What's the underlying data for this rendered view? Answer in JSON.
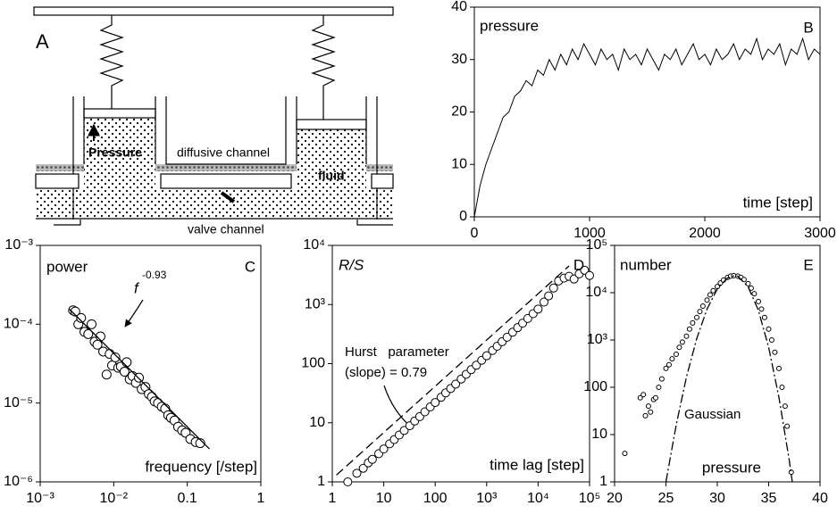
{
  "diagram": {
    "panel_label": "A",
    "labels": [
      "Pressure",
      "diffusive channel",
      "fluid",
      "valve channel"
    ]
  },
  "chart_data": [
    {
      "type": "line",
      "panel_label": "B",
      "ylabel": "pressure",
      "xlabel": "time [step]",
      "xlim": [
        0,
        3000
      ],
      "ylim": [
        0,
        40
      ],
      "xticks": [
        0,
        1000,
        2000,
        3000
      ],
      "yticks": [
        0,
        10,
        20,
        30,
        40
      ],
      "series": [
        {
          "kind": "line",
          "color": "#000000",
          "dash": "solid",
          "x": [
            0,
            50,
            100,
            150,
            200,
            250,
            300,
            350,
            400,
            450,
            500,
            550,
            600,
            650,
            700,
            750,
            800,
            850,
            900,
            950,
            1000,
            1050,
            1100,
            1150,
            1200,
            1250,
            1300,
            1350,
            1400,
            1450,
            1500,
            1550,
            1600,
            1650,
            1700,
            1750,
            1800,
            1850,
            1900,
            1950,
            2000,
            2050,
            2100,
            2150,
            2200,
            2250,
            2300,
            2350,
            2400,
            2450,
            2500,
            2550,
            2600,
            2650,
            2700,
            2750,
            2800,
            2850,
            2900,
            2950,
            3000
          ],
          "values": [
            0,
            6,
            10,
            13,
            16,
            19,
            20,
            23,
            24,
            26,
            25,
            28,
            27,
            30,
            28,
            31,
            29,
            32,
            30,
            33,
            31,
            29,
            32,
            30,
            31,
            28,
            32,
            30,
            31,
            29,
            32,
            30,
            28,
            31,
            30,
            32,
            29,
            31,
            33,
            30,
            31,
            29,
            32,
            30,
            31,
            33,
            30,
            32,
            31,
            34,
            30,
            32,
            31,
            33,
            29,
            32,
            31,
            34,
            30,
            32,
            31
          ]
        }
      ],
      "annotations": []
    },
    {
      "type": "scatter",
      "panel_label": "C",
      "ylabel": "power",
      "xlabel": "frequency [/step]",
      "xscale": "log",
      "yscale": "log",
      "xlim": [
        0.001,
        1
      ],
      "ylim": [
        1e-06,
        0.001
      ],
      "xticks": [
        {
          "value": 0.001,
          "label": "10⁻³"
        },
        {
          "value": 0.01,
          "label": "10⁻²"
        },
        0.1,
        1
      ],
      "yticks": [
        {
          "value": 1e-06,
          "label": "10⁻⁶"
        },
        {
          "value": 1e-05,
          "label": "10⁻⁵"
        },
        {
          "value": 0.0001,
          "label": "10⁻⁴"
        },
        {
          "value": 0.001,
          "label": "10⁻³"
        }
      ],
      "series": [
        {
          "kind": "points",
          "color": "#000000",
          "x": [
            0.0028,
            0.003,
            0.0033,
            0.0036,
            0.004,
            0.0045,
            0.005,
            0.0055,
            0.006,
            0.0066,
            0.0072,
            0.008,
            0.0088,
            0.0095,
            0.0105,
            0.0115,
            0.0125,
            0.014,
            0.015,
            0.0165,
            0.018,
            0.02,
            0.022,
            0.024,
            0.027,
            0.03,
            0.033,
            0.036,
            0.04,
            0.045,
            0.05,
            0.055,
            0.06,
            0.067,
            0.075,
            0.085,
            0.095,
            0.11,
            0.13,
            0.15
          ],
          "values": [
            0.00015,
            0.000145,
            0.0001,
            0.00012,
            8e-05,
            7.5e-05,
            0.0001,
            6e-05,
            5.5e-05,
            7e-05,
            4.5e-05,
            2.3e-05,
            4.2e-05,
            3e-05,
            3.8e-05,
            2.8e-05,
            2.9e-05,
            2.5e-05,
            3.3e-05,
            2e-05,
            2.2e-05,
            1.8e-05,
            2.1e-05,
            1.5e-05,
            1.6e-05,
            1.3e-05,
            1.2e-05,
            1.05e-05,
            1e-05,
            9e-06,
            8.5e-06,
            7e-06,
            6.5e-06,
            6e-06,
            5e-06,
            4.5e-06,
            4.2e-06,
            3.5e-06,
            3.2e-06,
            3.1e-06
          ]
        },
        {
          "kind": "line",
          "color": "#000000",
          "dash": "solid",
          "x": [
            0.0025,
            0.2
          ],
          "values": [
            0.000155,
            2.62e-06
          ]
        }
      ],
      "annotations": [
        "f",
        "-0.93"
      ]
    },
    {
      "type": "scatter",
      "panel_label": "D",
      "ylabel": "R/S",
      "xlabel": "time lag [step]",
      "xscale": "log",
      "yscale": "log",
      "xlim": [
        1,
        100000
      ],
      "ylim": [
        1,
        10000
      ],
      "xticks": [
        1,
        10,
        100,
        {
          "value": 1000,
          "label": "10³"
        },
        {
          "value": 10000,
          "label": "10⁴"
        },
        {
          "value": 100000,
          "label": "10⁵"
        }
      ],
      "yticks": [
        1,
        10,
        100,
        {
          "value": 1000,
          "label": "10³"
        },
        {
          "value": 10000,
          "label": "10⁴"
        }
      ],
      "series": [
        {
          "kind": "points",
          "color": "#000000",
          "x": [
            2,
            3,
            4,
            5,
            6,
            8,
            10,
            13,
            16,
            20,
            25,
            32,
            40,
            50,
            63,
            80,
            100,
            130,
            160,
            200,
            250,
            320,
            400,
            500,
            630,
            800,
            1000,
            1300,
            1600,
            2000,
            2500,
            3200,
            4000,
            5000,
            6300,
            8000,
            10000,
            13000,
            16000,
            20000,
            25000,
            32000,
            40000,
            50000,
            63000,
            80000,
            100000
          ],
          "values": [
            1,
            1.4,
            1.7,
            2.1,
            2.4,
            3,
            3.6,
            4.4,
            5.2,
            6.2,
            7.4,
            8.9,
            10.7,
            12.7,
            15.3,
            18.5,
            22,
            27,
            32,
            38,
            45,
            55,
            66,
            79,
            94,
            114,
            136,
            167,
            197,
            235,
            280,
            340,
            406,
            484,
            581,
            700,
            838,
            1100,
            1400,
            1900,
            2500,
            2800,
            3000,
            2700,
            3300,
            3800,
            3100
          ]
        },
        {
          "kind": "line",
          "color": "#000000",
          "dash": "dashed",
          "x": [
            1.2,
            40000
          ],
          "values": [
            1.3,
            4500
          ]
        }
      ],
      "annotations": [
        "Hurst   parameter",
        "(slope) = 0.79"
      ]
    },
    {
      "type": "scatter",
      "panel_label": "E",
      "ylabel": "number",
      "xlabel": "pressure",
      "yscale": "log",
      "xlim": [
        20,
        40
      ],
      "ylim": [
        1,
        100000
      ],
      "xticks": [
        20,
        25,
        30,
        35,
        40
      ],
      "yticks": [
        1,
        10,
        100,
        {
          "value": 1000,
          "label": "10³"
        },
        {
          "value": 10000,
          "label": "10⁴"
        },
        {
          "value": 100000,
          "label": "10⁵"
        }
      ],
      "series": [
        {
          "kind": "points",
          "color": "#000000",
          "x": [
            21,
            22.5,
            22.8,
            23,
            23.3,
            23.5,
            23.8,
            24,
            24.3,
            24.6,
            25,
            25.3,
            25.6,
            26,
            26.3,
            26.6,
            27,
            27.3,
            27.6,
            28,
            28.3,
            28.6,
            29,
            29.3,
            29.6,
            30,
            30.3,
            30.6,
            31,
            31.3,
            31.6,
            32,
            32.3,
            32.6,
            33,
            33.3,
            33.6,
            34,
            34.3,
            34.6,
            35,
            35.3,
            35.6,
            36,
            36.3,
            36.6,
            36.8,
            37.2
          ],
          "values": [
            4,
            60,
            70,
            25,
            40,
            30,
            55,
            60,
            100,
            150,
            250,
            300,
            400,
            500,
            700,
            900,
            1200,
            1700,
            2300,
            3000,
            4000,
            5200,
            7000,
            9000,
            11000,
            13500,
            16000,
            18500,
            21000,
            22500,
            23000,
            22500,
            21000,
            19000,
            15500,
            12500,
            9500,
            6500,
            4500,
            3000,
            1700,
            1000,
            550,
            250,
            100,
            40,
            15,
            1.6
          ]
        },
        {
          "kind": "line",
          "color": "#000000",
          "dash": "dashdot",
          "x": [
            25,
            26,
            27,
            28,
            29,
            30,
            31,
            31.7,
            32,
            33,
            34,
            35,
            36,
            37,
            37.3
          ],
          "values": [
            1,
            16,
            166,
            1070,
            4500,
            12000,
            20500,
            23000,
            22300,
            13300,
            4230,
            700,
            61,
            2.9,
            1
          ]
        }
      ],
      "annotations": [
        "Gaussian"
      ]
    }
  ]
}
